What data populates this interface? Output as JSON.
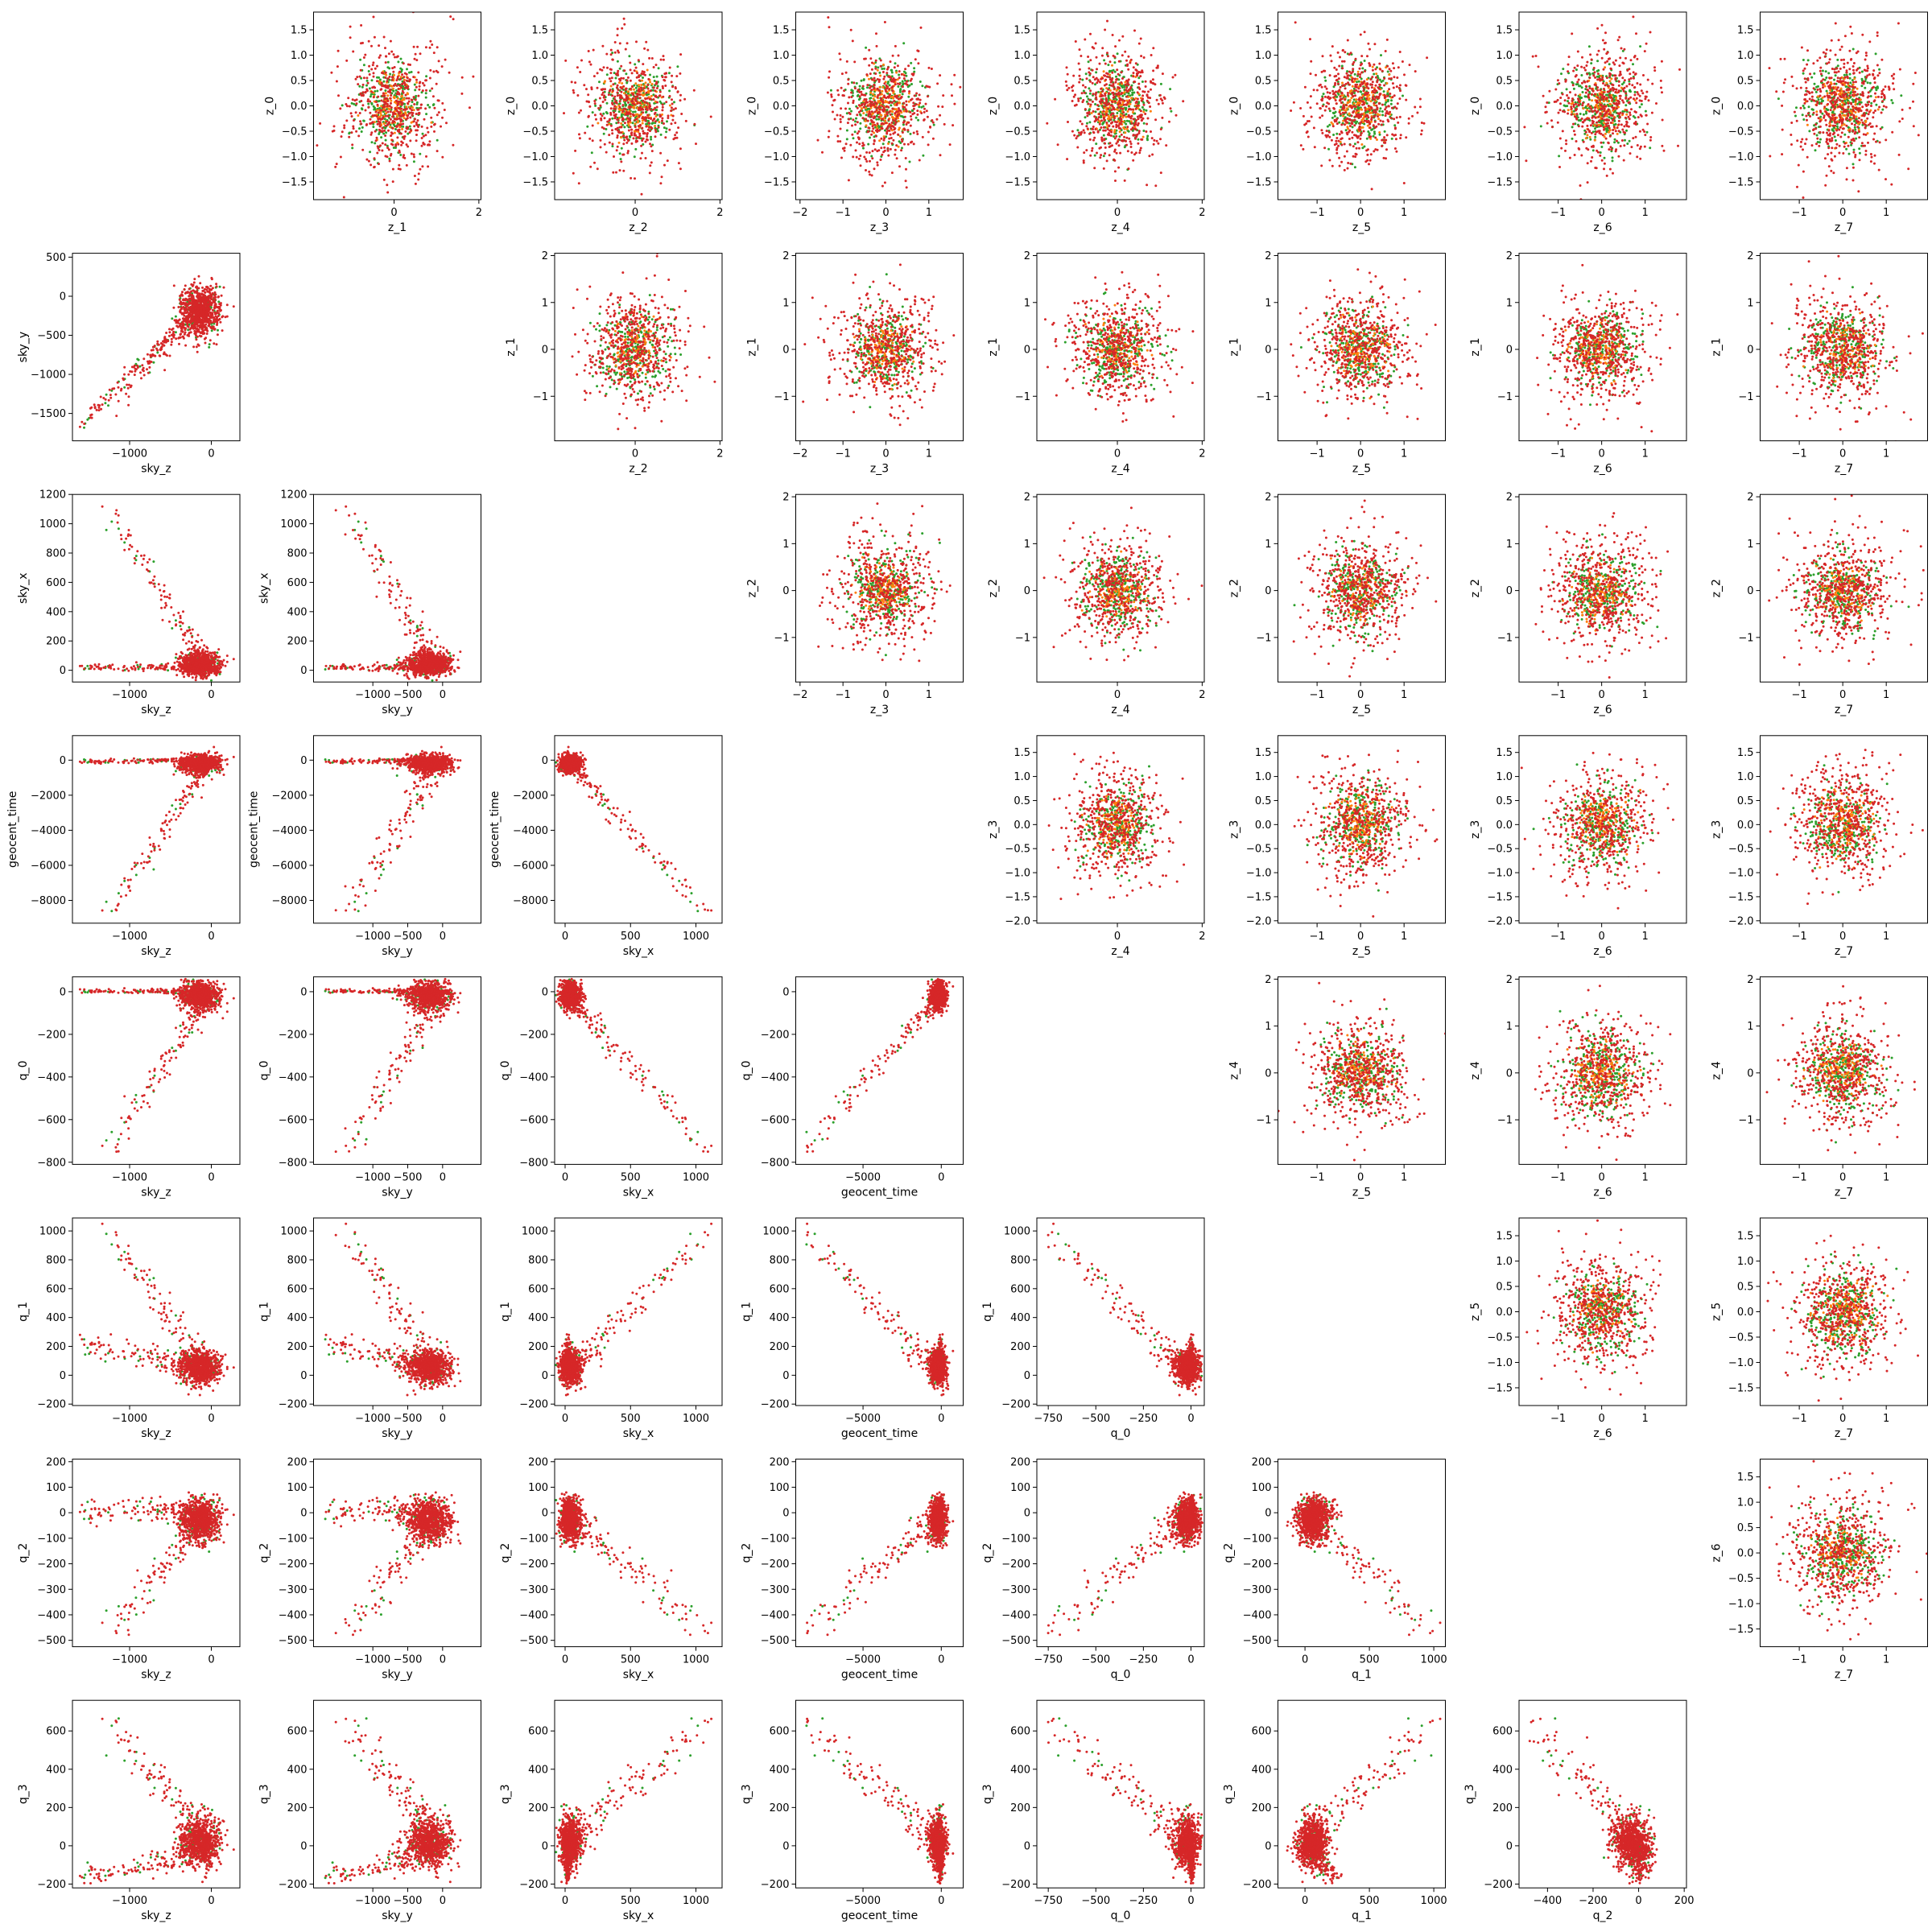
{
  "figure": {
    "type": "corner-scatter",
    "grid_rows": 8,
    "grid_cols": 8
  },
  "chart_data": {
    "type": "scatter",
    "series_colors": {
      "primary": "#d62728",
      "secondary": "#2ca02c",
      "overlap": "#ff7f0e"
    },
    "variables": {
      "sky_z": {
        "lim": [
          -1700,
          350
        ],
        "ticks": [
          -1000,
          0
        ]
      },
      "sky_y": {
        "lim": [
          -1850,
          550
        ],
        "ticks": [
          -1500,
          -1000,
          -500,
          0,
          500
        ],
        "xticks": [
          -1000,
          -500,
          0
        ]
      },
      "sky_x": {
        "lim": [
          -80,
          1200
        ],
        "ticks": [
          0,
          200,
          400,
          600,
          800,
          1000,
          1200
        ],
        "xticks": [
          0,
          500,
          1000
        ]
      },
      "geocent_time": {
        "lim": [
          -9300,
          1400
        ],
        "ticks": [
          -8000,
          -6000,
          -4000,
          -2000,
          0
        ],
        "xticks": [
          -5000,
          0
        ]
      },
      "q_0": {
        "lim": [
          -810,
          70
        ],
        "ticks": [
          -800,
          -600,
          -400,
          -200,
          0
        ],
        "xticks": [
          -750,
          -500,
          -250,
          0
        ]
      },
      "q_1": {
        "lim": [
          -210,
          1090
        ],
        "ticks": [
          -200,
          0,
          200,
          400,
          600,
          800,
          1000
        ],
        "xticks": [
          0,
          500,
          1000
        ]
      },
      "q_2": {
        "lim": [
          -525,
          210
        ],
        "ticks": [
          -500,
          -400,
          -300,
          -200,
          -100,
          0,
          100,
          200
        ],
        "xticks": [
          -400,
          -200,
          0,
          200
        ]
      },
      "q_3": {
        "lim": [
          -220,
          760
        ],
        "ticks": [
          -200,
          0,
          200,
          400,
          600
        ]
      }
    },
    "lower_panels": [
      {
        "x": "sky_z",
        "y": "sky_y"
      },
      {
        "x": "sky_z",
        "y": "sky_x"
      },
      {
        "x": "sky_y",
        "y": "sky_x"
      },
      {
        "x": "sky_z",
        "y": "geocent_time"
      },
      {
        "x": "sky_y",
        "y": "geocent_time"
      },
      {
        "x": "sky_x",
        "y": "geocent_time"
      },
      {
        "x": "sky_z",
        "y": "q_0"
      },
      {
        "x": "sky_y",
        "y": "q_0"
      },
      {
        "x": "sky_x",
        "y": "q_0"
      },
      {
        "x": "geocent_time",
        "y": "q_0"
      },
      {
        "x": "sky_z",
        "y": "q_1"
      },
      {
        "x": "sky_y",
        "y": "q_1"
      },
      {
        "x": "sky_x",
        "y": "q_1"
      },
      {
        "x": "geocent_time",
        "y": "q_1"
      },
      {
        "x": "q_0",
        "y": "q_1"
      },
      {
        "x": "sky_z",
        "y": "q_2"
      },
      {
        "x": "sky_y",
        "y": "q_2"
      },
      {
        "x": "sky_x",
        "y": "q_2"
      },
      {
        "x": "geocent_time",
        "y": "q_2"
      },
      {
        "x": "q_0",
        "y": "q_2"
      },
      {
        "x": "q_1",
        "y": "q_2"
      },
      {
        "x": "sky_z",
        "y": "q_3"
      },
      {
        "x": "sky_y",
        "y": "q_3"
      },
      {
        "x": "sky_x",
        "y": "q_3"
      },
      {
        "x": "geocent_time",
        "y": "q_3"
      },
      {
        "x": "q_0",
        "y": "q_3"
      },
      {
        "x": "q_1",
        "y": "q_3"
      },
      {
        "x": "q_2",
        "y": "q_3"
      }
    ],
    "upper_panels": [
      {
        "x": "z_1",
        "y": "z_0",
        "xticks": [
          0,
          2
        ],
        "yticks": [
          -1.5,
          -1.0,
          -0.5,
          0.0,
          0.5,
          1.0,
          1.5
        ],
        "xlim": [
          -1.9,
          2.05
        ],
        "ylim": [
          -1.85,
          1.85
        ]
      },
      {
        "x": "z_2",
        "y": "z_0",
        "xticks": [
          0,
          2
        ],
        "yticks": [
          -1.5,
          -1.0,
          -0.5,
          0.0,
          0.5,
          1.0,
          1.5
        ],
        "xlim": [
          -1.9,
          2.05
        ],
        "ylim": [
          -1.85,
          1.85
        ]
      },
      {
        "x": "z_3",
        "y": "z_0",
        "xticks": [
          -2,
          -1,
          0,
          1
        ],
        "yticks": [
          -1.5,
          -1.0,
          -0.5,
          0.0,
          0.5,
          1.0,
          1.5
        ],
        "xlim": [
          -2.1,
          1.8
        ],
        "ylim": [
          -1.85,
          1.85
        ]
      },
      {
        "x": "z_4",
        "y": "z_0",
        "xticks": [
          0,
          2
        ],
        "yticks": [
          -1.5,
          -1.0,
          -0.5,
          0.0,
          0.5,
          1.0,
          1.5
        ],
        "xlim": [
          -1.9,
          2.05
        ],
        "ylim": [
          -1.85,
          1.85
        ]
      },
      {
        "x": "z_5",
        "y": "z_0",
        "xticks": [
          -1,
          0,
          1
        ],
        "yticks": [
          -1.5,
          -1.0,
          -0.5,
          0.0,
          0.5,
          1.0,
          1.5
        ],
        "xlim": [
          -1.9,
          1.95
        ],
        "ylim": [
          -1.85,
          1.85
        ]
      },
      {
        "x": "z_6",
        "y": "z_0",
        "xticks": [
          -1,
          0,
          1
        ],
        "yticks": [
          -1.5,
          -1.0,
          -0.5,
          0.0,
          0.5,
          1.0,
          1.5
        ],
        "xlim": [
          -1.9,
          1.95
        ],
        "ylim": [
          -1.85,
          1.85
        ]
      },
      {
        "x": "z_7",
        "y": "z_0",
        "xticks": [
          -1,
          0,
          1
        ],
        "yticks": [
          -1.5,
          -1.0,
          -0.5,
          0.0,
          0.5,
          1.0,
          1.5
        ],
        "xlim": [
          -1.9,
          1.95
        ],
        "ylim": [
          -1.85,
          1.85
        ]
      },
      {
        "x": "z_2",
        "y": "z_1",
        "xticks": [
          0,
          2
        ],
        "yticks": [
          -1,
          0,
          1,
          2
        ],
        "xlim": [
          -1.9,
          2.05
        ],
        "ylim": [
          -1.95,
          2.05
        ]
      },
      {
        "x": "z_3",
        "y": "z_1",
        "xticks": [
          -2,
          -1,
          0,
          1
        ],
        "yticks": [
          -1,
          0,
          1,
          2
        ],
        "xlim": [
          -2.1,
          1.8
        ],
        "ylim": [
          -1.95,
          2.05
        ]
      },
      {
        "x": "z_4",
        "y": "z_1",
        "xticks": [
          0,
          2
        ],
        "yticks": [
          -1,
          0,
          1,
          2
        ],
        "xlim": [
          -1.9,
          2.05
        ],
        "ylim": [
          -1.95,
          2.05
        ]
      },
      {
        "x": "z_5",
        "y": "z_1",
        "xticks": [
          -1,
          0,
          1
        ],
        "yticks": [
          -1,
          0,
          1,
          2
        ],
        "xlim": [
          -1.9,
          1.95
        ],
        "ylim": [
          -1.95,
          2.05
        ]
      },
      {
        "x": "z_6",
        "y": "z_1",
        "xticks": [
          -1,
          0,
          1
        ],
        "yticks": [
          -1,
          0,
          1,
          2
        ],
        "xlim": [
          -1.9,
          1.95
        ],
        "ylim": [
          -1.95,
          2.05
        ]
      },
      {
        "x": "z_7",
        "y": "z_1",
        "xticks": [
          -1,
          0,
          1
        ],
        "yticks": [
          -1,
          0,
          1,
          2
        ],
        "xlim": [
          -1.9,
          1.95
        ],
        "ylim": [
          -1.95,
          2.05
        ]
      },
      {
        "x": "z_3",
        "y": "z_2",
        "xticks": [
          -2,
          -1,
          0,
          1
        ],
        "yticks": [
          -1,
          0,
          1,
          2
        ],
        "xlim": [
          -2.1,
          1.8
        ],
        "ylim": [
          -1.95,
          2.05
        ]
      },
      {
        "x": "z_4",
        "y": "z_2",
        "xticks": [
          0,
          2
        ],
        "yticks": [
          -1,
          0,
          1,
          2
        ],
        "xlim": [
          -1.9,
          2.05
        ],
        "ylim": [
          -1.95,
          2.05
        ]
      },
      {
        "x": "z_5",
        "y": "z_2",
        "xticks": [
          -1,
          0,
          1
        ],
        "yticks": [
          -1,
          0,
          1,
          2
        ],
        "xlim": [
          -1.9,
          1.95
        ],
        "ylim": [
          -1.95,
          2.05
        ]
      },
      {
        "x": "z_6",
        "y": "z_2",
        "xticks": [
          -1,
          0,
          1
        ],
        "yticks": [
          -1,
          0,
          1,
          2
        ],
        "xlim": [
          -1.9,
          1.95
        ],
        "ylim": [
          -1.95,
          2.05
        ]
      },
      {
        "x": "z_7",
        "y": "z_2",
        "xticks": [
          -1,
          0,
          1
        ],
        "yticks": [
          -1,
          0,
          1,
          2
        ],
        "xlim": [
          -1.9,
          1.95
        ],
        "ylim": [
          -1.95,
          2.05
        ]
      },
      {
        "x": "z_4",
        "y": "z_3",
        "xticks": [
          0,
          2
        ],
        "yticks": [
          -2.0,
          -1.5,
          -1.0,
          -0.5,
          0.0,
          0.5,
          1.0,
          1.5
        ],
        "xlim": [
          -1.9,
          2.05
        ],
        "ylim": [
          -2.05,
          1.85
        ]
      },
      {
        "x": "z_5",
        "y": "z_3",
        "xticks": [
          -1,
          0,
          1
        ],
        "yticks": [
          -2.0,
          -1.5,
          -1.0,
          -0.5,
          0.0,
          0.5,
          1.0,
          1.5
        ],
        "xlim": [
          -1.9,
          1.95
        ],
        "ylim": [
          -2.05,
          1.85
        ]
      },
      {
        "x": "z_6",
        "y": "z_3",
        "xticks": [
          -1,
          0,
          1
        ],
        "yticks": [
          -2.0,
          -1.5,
          -1.0,
          -0.5,
          0.0,
          0.5,
          1.0,
          1.5
        ],
        "xlim": [
          -1.9,
          1.95
        ],
        "ylim": [
          -2.05,
          1.85
        ]
      },
      {
        "x": "z_7",
        "y": "z_3",
        "xticks": [
          -1,
          0,
          1
        ],
        "yticks": [
          -2.0,
          -1.5,
          -1.0,
          -0.5,
          0.0,
          0.5,
          1.0,
          1.5
        ],
        "xlim": [
          -1.9,
          1.95
        ],
        "ylim": [
          -2.05,
          1.85
        ]
      },
      {
        "x": "z_5",
        "y": "z_4",
        "xticks": [
          -1,
          0,
          1
        ],
        "yticks": [
          -1,
          0,
          1,
          2
        ],
        "xlim": [
          -1.9,
          1.95
        ],
        "ylim": [
          -1.95,
          2.05
        ]
      },
      {
        "x": "z_6",
        "y": "z_4",
        "xticks": [
          -1,
          0,
          1
        ],
        "yticks": [
          -1,
          0,
          1,
          2
        ],
        "xlim": [
          -1.9,
          1.95
        ],
        "ylim": [
          -1.95,
          2.05
        ]
      },
      {
        "x": "z_7",
        "y": "z_4",
        "xticks": [
          -1,
          0,
          1
        ],
        "yticks": [
          -1,
          0,
          1,
          2
        ],
        "xlim": [
          -1.9,
          1.95
        ],
        "ylim": [
          -1.95,
          2.05
        ]
      },
      {
        "x": "z_6",
        "y": "z_5",
        "xticks": [
          -1,
          0,
          1
        ],
        "yticks": [
          -1.5,
          -1.0,
          -0.5,
          0.0,
          0.5,
          1.0,
          1.5
        ],
        "xlim": [
          -1.9,
          1.95
        ],
        "ylim": [
          -1.85,
          1.85
        ]
      },
      {
        "x": "z_7",
        "y": "z_5",
        "xticks": [
          -1,
          0,
          1
        ],
        "yticks": [
          -1.5,
          -1.0,
          -0.5,
          0.0,
          0.5,
          1.0,
          1.5
        ],
        "xlim": [
          -1.9,
          1.95
        ],
        "ylim": [
          -1.85,
          1.85
        ]
      },
      {
        "x": "z_7",
        "y": "z_6",
        "xticks": [
          -1,
          0,
          1
        ],
        "yticks": [
          -1.5,
          -1.0,
          -0.5,
          0.0,
          0.5,
          1.0,
          1.5
        ],
        "xlim": [
          -1.9,
          1.95
        ],
        "ylim": [
          -1.85,
          1.85
        ]
      }
    ]
  }
}
